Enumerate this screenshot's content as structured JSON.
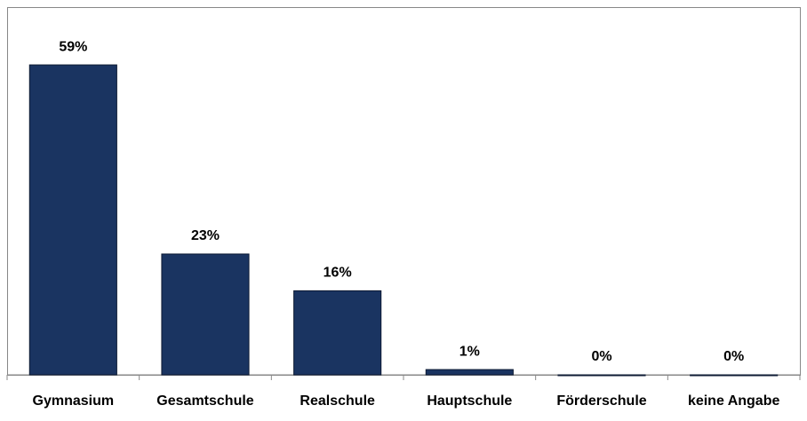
{
  "chart_data": {
    "type": "bar",
    "categories": [
      "Gymnasium",
      "Gesamtschule",
      "Realschule",
      "Hauptschule",
      "Förderschule",
      "keine Angabe"
    ],
    "values": [
      59,
      23,
      16,
      1,
      0,
      0
    ],
    "value_labels": [
      "59%",
      "23%",
      "16%",
      "1%",
      "0%",
      "0%"
    ],
    "color": "#1a3461",
    "ylim": [
      0,
      70
    ]
  }
}
